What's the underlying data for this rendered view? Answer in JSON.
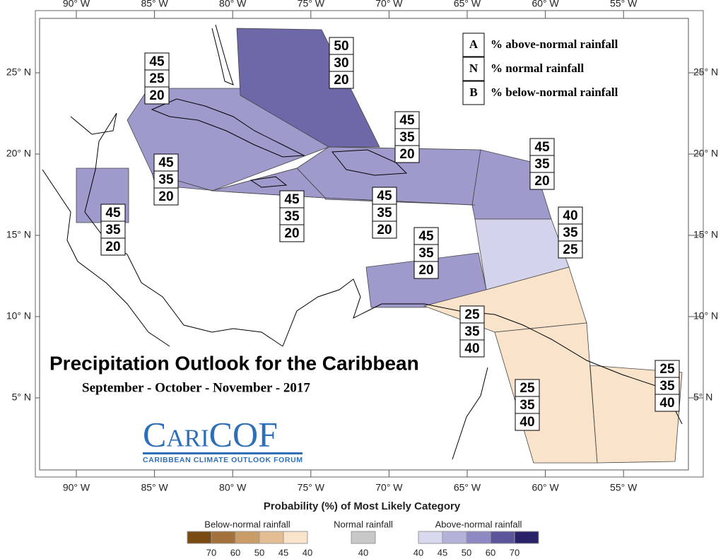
{
  "title": "Precipitation Outlook for the Caribbean",
  "subtitle": "September - October - November - 2017",
  "logo": {
    "name": "CariCOF",
    "tagline": "CARIBBEAN CLIMATE OUTLOOK FORUM"
  },
  "axes": {
    "longitude": [
      "90° W",
      "85° W",
      "80° W",
      "75° W",
      "70° W",
      "65° W",
      "60° W",
      "55° W"
    ],
    "latitude": [
      "25° N",
      "20° N",
      "15° N",
      "10° N",
      "5° N"
    ]
  },
  "key": [
    {
      "letter": "A",
      "text": "% above-normal rainfall"
    },
    {
      "letter": "N",
      "text": "% normal rainfall"
    },
    {
      "letter": "B",
      "text": "% below-normal rainfall"
    }
  ],
  "outlooks": [
    {
      "A": 45,
      "N": 25,
      "B": 20,
      "color": "#9e9acb"
    },
    {
      "A": 50,
      "N": 30,
      "B": 20,
      "color": "#6d68a8"
    },
    {
      "A": 45,
      "N": 35,
      "B": 20,
      "color": "#9e9acb"
    },
    {
      "A": 45,
      "N": 35,
      "B": 20,
      "color": "#9e9acb"
    },
    {
      "A": 45,
      "N": 35,
      "B": 20,
      "color": "#9e9acb"
    },
    {
      "A": 45,
      "N": 35,
      "B": 20,
      "color": "#9e9acb"
    },
    {
      "A": 45,
      "N": 35,
      "B": 20,
      "color": "#9e9acb"
    },
    {
      "A": 45,
      "N": 35,
      "B": 20,
      "color": "#9e9acb"
    },
    {
      "A": 45,
      "N": 35,
      "B": 20,
      "color": "#9e9acb"
    },
    {
      "A": 40,
      "N": 35,
      "B": 25,
      "color": "#d4d3ec"
    },
    {
      "A": 25,
      "N": 35,
      "B": 40,
      "color": "#f9e4cb"
    },
    {
      "A": 25,
      "N": 35,
      "B": 40,
      "color": "#f9e4cb"
    },
    {
      "A": 25,
      "N": 35,
      "B": 40,
      "color": "#f9e4cb"
    }
  ],
  "legend": {
    "title": "Probability (%) of Most Likely Category",
    "groups": [
      {
        "name": "Below-normal rainfall",
        "swatches": [
          {
            "value": 70,
            "color": "#7a4a13"
          },
          {
            "value": 60,
            "color": "#a3723c"
          },
          {
            "value": 50,
            "color": "#c99c68"
          },
          {
            "value": 45,
            "color": "#e2be92"
          },
          {
            "value": 40,
            "color": "#f9e4cb"
          }
        ]
      },
      {
        "name": "Normal rainfall",
        "swatches": [
          {
            "value": 40,
            "color": "#c8c8c8"
          }
        ]
      },
      {
        "name": "Above-normal rainfall",
        "swatches": [
          {
            "value": 40,
            "color": "#d8d8ee"
          },
          {
            "value": 45,
            "color": "#b4b2da"
          },
          {
            "value": 50,
            "color": "#8d89c2"
          },
          {
            "value": 60,
            "color": "#5c559b"
          },
          {
            "value": 70,
            "color": "#2a2269"
          }
        ]
      }
    ]
  }
}
